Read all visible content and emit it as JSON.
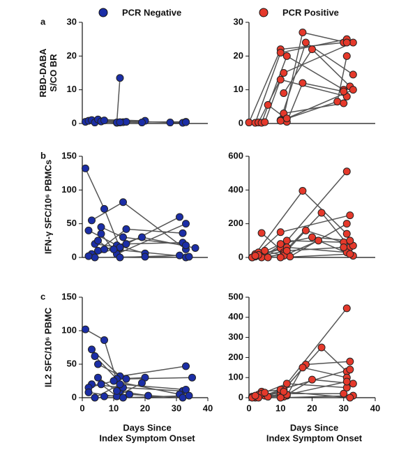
{
  "legend": [
    {
      "name": "PCR Negative",
      "color": "#1b2ea6"
    },
    {
      "name": "PCR Positive",
      "color": "#e5392b"
    }
  ],
  "chart_data": [
    {
      "type": "line",
      "panel_label": "a",
      "ylabel": [
        "RBD-DABA",
        "S/CO BR"
      ],
      "color": "#1b2ea6",
      "xlim": [
        0,
        40
      ],
      "ylim": [
        0,
        30
      ],
      "yticks": [
        0,
        10,
        20,
        30
      ],
      "lines": [
        {
          "x": [
            1,
            12
          ],
          "values": [
            0.5,
            0.3
          ]
        },
        {
          "x": [
            2,
            11
          ],
          "values": [
            0.8,
            0.2
          ]
        },
        {
          "x": [
            3,
            13
          ],
          "values": [
            1,
            0.4
          ]
        },
        {
          "x": [
            4,
            14
          ],
          "values": [
            0.3,
            0.5
          ]
        },
        {
          "x": [
            5,
            20
          ],
          "values": [
            1.2,
            0.8
          ]
        },
        {
          "x": [
            6,
            19
          ],
          "values": [
            0.6,
            0.3
          ]
        },
        {
          "x": [
            7,
            32
          ],
          "values": [
            0.9,
            0.2
          ]
        },
        {
          "x": [
            11,
            12
          ],
          "values": [
            0.3,
            13.5
          ]
        },
        {
          "x": [
            12,
            33
          ],
          "values": [
            0.4,
            0.5
          ]
        },
        {
          "x": [
            28,
            33
          ],
          "values": [
            0.3,
            0.4
          ]
        }
      ]
    },
    {
      "type": "line",
      "color": "#e5392b",
      "xlim": [
        0,
        40
      ],
      "ylim": [
        0,
        30
      ],
      "yticks": [
        0,
        10,
        20,
        30
      ],
      "lines": [
        {
          "x": [
            0,
            10,
            30
          ],
          "values": [
            0.3,
            22,
            24
          ]
        },
        {
          "x": [
            2,
            10,
            31
          ],
          "values": [
            0.2,
            21,
            25
          ]
        },
        {
          "x": [
            3,
            11,
            33
          ],
          "values": [
            0.3,
            15,
            24
          ]
        },
        {
          "x": [
            4,
            12,
            30
          ],
          "values": [
            0.2,
            20,
            10
          ]
        },
        {
          "x": [
            5,
            10,
            31
          ],
          "values": [
            0.4,
            13,
            8
          ]
        },
        {
          "x": [
            6,
            11,
            17,
            31
          ],
          "values": [
            5.5,
            2,
            27,
            24
          ]
        },
        {
          "x": [
            10,
            18,
            33
          ],
          "values": [
            1,
            24,
            14.5
          ]
        },
        {
          "x": [
            11,
            20,
            32
          ],
          "values": [
            9,
            22,
            11
          ]
        },
        {
          "x": [
            12,
            17,
            30
          ],
          "values": [
            0.5,
            12,
            9.5
          ]
        },
        {
          "x": [
            10,
            28,
            31
          ],
          "values": [
            0.8,
            6.5,
            20
          ]
        },
        {
          "x": [
            11,
            30
          ],
          "values": [
            3,
            6
          ]
        },
        {
          "x": [
            12,
            33
          ],
          "values": [
            1.5,
            10
          ]
        }
      ]
    },
    {
      "type": "line",
      "panel_label": "b",
      "ylabel": [
        "IFN-γ SFC/10⁶ PBMCs"
      ],
      "color": "#1b2ea6",
      "xlim": [
        0,
        40
      ],
      "ylim": [
        0,
        150
      ],
      "yticks": [
        0,
        50,
        100,
        150
      ],
      "lines": [
        {
          "x": [
            1,
            7,
            12
          ],
          "values": [
            132,
            72,
            14
          ]
        },
        {
          "x": [
            2,
            11,
            20
          ],
          "values": [
            40,
            18,
            6
          ]
        },
        {
          "x": [
            3,
            13,
            33
          ],
          "values": [
            55,
            82,
            12
          ]
        },
        {
          "x": [
            4,
            12,
            31
          ],
          "values": [
            20,
            15,
            60
          ]
        },
        {
          "x": [
            5,
            14,
            32
          ],
          "values": [
            10,
            42,
            36
          ]
        },
        {
          "x": [
            6,
            11,
            33
          ],
          "values": [
            35,
            5,
            50
          ]
        },
        {
          "x": [
            3,
            19,
            36
          ],
          "values": [
            5,
            30,
            14
          ]
        },
        {
          "x": [
            5,
            12,
            31
          ],
          "values": [
            25,
            0,
            3
          ]
        },
        {
          "x": [
            4,
            20,
            33
          ],
          "values": [
            0,
            1,
            0
          ]
        },
        {
          "x": [
            7,
            14,
            32
          ],
          "values": [
            12,
            20,
            22
          ]
        },
        {
          "x": [
            2,
            10,
            34
          ],
          "values": [
            2,
            12,
            1
          ]
        },
        {
          "x": [
            6,
            13,
            33
          ],
          "values": [
            45,
            30,
            18
          ]
        }
      ]
    },
    {
      "type": "line",
      "color": "#e5392b",
      "xlim": [
        0,
        40
      ],
      "ylim": [
        0,
        600
      ],
      "yticks": [
        0,
        200,
        400,
        600
      ],
      "lines": [
        {
          "x": [
            1,
            10,
            31
          ],
          "values": [
            0,
            55,
            510
          ]
        },
        {
          "x": [
            2,
            17,
            31
          ],
          "values": [
            20,
            395,
            140
          ]
        },
        {
          "x": [
            4,
            11,
            23,
            32
          ],
          "values": [
            145,
            30,
            265,
            60
          ]
        },
        {
          "x": [
            3,
            10,
            32
          ],
          "values": [
            30,
            150,
            250
          ]
        },
        {
          "x": [
            5,
            12,
            30
          ],
          "values": [
            10,
            100,
            90
          ]
        },
        {
          "x": [
            4,
            11,
            18,
            33
          ],
          "values": [
            0,
            20,
            160,
            70
          ]
        },
        {
          "x": [
            2,
            12,
            31
          ],
          "values": [
            5,
            60,
            30
          ]
        },
        {
          "x": [
            3,
            10,
            20,
            32
          ],
          "values": [
            15,
            80,
            120,
            100
          ]
        },
        {
          "x": [
            6,
            13,
            31
          ],
          "values": [
            0,
            5,
            200
          ]
        },
        {
          "x": [
            5,
            11,
            22,
            33
          ],
          "values": [
            40,
            10,
            100,
            10
          ]
        },
        {
          "x": [
            1,
            12,
            30
          ],
          "values": [
            0,
            40,
            60
          ]
        },
        {
          "x": [
            2,
            10,
            32
          ],
          "values": [
            10,
            0,
            20
          ]
        }
      ]
    },
    {
      "type": "line",
      "panel_label": "c",
      "ylabel": [
        "IL2 SFC/10⁶ PBMC"
      ],
      "xlabel": [
        "Days Since",
        "Index Symptom Onset"
      ],
      "color": "#1b2ea6",
      "xlim": [
        0,
        40
      ],
      "xticks": [
        0,
        10,
        20,
        30,
        40
      ],
      "ylim": [
        0,
        150
      ],
      "yticks": [
        0,
        50,
        100,
        150
      ],
      "lines": [
        {
          "x": [
            1,
            7,
            12
          ],
          "values": [
            102,
            86,
            10
          ]
        },
        {
          "x": [
            3,
            12,
            33
          ],
          "values": [
            72,
            32,
            47
          ]
        },
        {
          "x": [
            4,
            11,
            20
          ],
          "values": [
            62,
            28,
            30
          ]
        },
        {
          "x": [
            5,
            14,
            35
          ],
          "values": [
            50,
            28,
            30
          ]
        },
        {
          "x": [
            3,
            13,
            32
          ],
          "values": [
            20,
            15,
            10
          ]
        },
        {
          "x": [
            2,
            10,
            31
          ],
          "values": [
            15,
            25,
            5
          ]
        },
        {
          "x": [
            6,
            11,
            19
          ],
          "values": [
            20,
            2,
            22
          ]
        },
        {
          "x": [
            4,
            12,
            33
          ],
          "values": [
            0,
            20,
            12
          ]
        },
        {
          "x": [
            7,
            15,
            32
          ],
          "values": [
            2,
            5,
            0
          ]
        },
        {
          "x": [
            2,
            13,
            34
          ],
          "values": [
            8,
            0,
            3
          ]
        },
        {
          "x": [
            5,
            11,
            21
          ],
          "values": [
            30,
            10,
            3
          ]
        }
      ]
    },
    {
      "type": "line",
      "xlabel": [
        "Days Since",
        "Index Symptom Onset"
      ],
      "color": "#e5392b",
      "xlim": [
        0,
        40
      ],
      "xticks": [
        0,
        10,
        20,
        30,
        40
      ],
      "ylim": [
        0,
        500
      ],
      "yticks": [
        0,
        100,
        200,
        300,
        400,
        500
      ],
      "lines": [
        {
          "x": [
            1,
            10,
            31
          ],
          "values": [
            5,
            30,
            445
          ]
        },
        {
          "x": [
            4,
            11,
            23,
            31
          ],
          "values": [
            30,
            40,
            250,
            130
          ]
        },
        {
          "x": [
            3,
            10,
            18,
            32
          ],
          "values": [
            15,
            20,
            165,
            180
          ]
        },
        {
          "x": [
            2,
            12,
            17,
            31
          ],
          "values": [
            0,
            10,
            150,
            100
          ]
        },
        {
          "x": [
            5,
            11,
            20,
            33
          ],
          "values": [
            10,
            5,
            90,
            70
          ]
        },
        {
          "x": [
            4,
            12,
            31
          ],
          "values": [
            20,
            70,
            50
          ]
        },
        {
          "x": [
            3,
            10,
            32
          ],
          "values": [
            0,
            40,
            140
          ]
        },
        {
          "x": [
            6,
            11,
            30
          ],
          "values": [
            5,
            20,
            20
          ]
        },
        {
          "x": [
            1,
            12,
            31
          ],
          "values": [
            0,
            15,
            80
          ]
        },
        {
          "x": [
            5,
            10,
            33
          ],
          "values": [
            25,
            0,
            10
          ]
        },
        {
          "x": [
            2,
            11,
            32
          ],
          "values": [
            10,
            30,
            0
          ]
        }
      ]
    }
  ]
}
